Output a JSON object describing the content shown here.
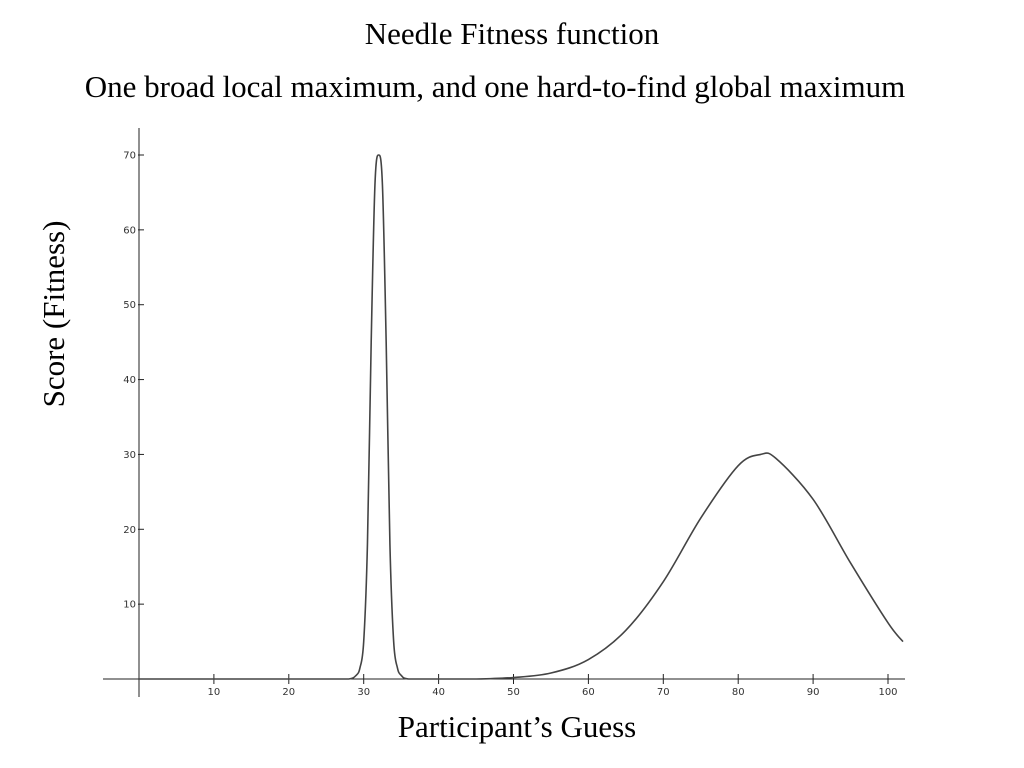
{
  "chart_data": {
    "type": "line",
    "title": "Needle Fitness function",
    "subtitle": "One broad local maximum, and one hard-to-find global maximum",
    "xlabel": "Participant’s Guess",
    "ylabel": "Score (Fitness)",
    "xlim": [
      -5,
      102
    ],
    "ylim": [
      0,
      70
    ],
    "xticks": [
      10,
      20,
      30,
      40,
      50,
      60,
      70,
      80,
      90,
      100
    ],
    "yticks": [
      10,
      20,
      30,
      40,
      50,
      60,
      70
    ],
    "grid": false,
    "series": [
      {
        "color": "#444444",
        "x": [
          0,
          25,
          28,
          29,
          29.5,
          30,
          30.5,
          31,
          31.5,
          32,
          32.5,
          33,
          33.5,
          34,
          34.5,
          35,
          36,
          40,
          45,
          50,
          55,
          60,
          65,
          70,
          75,
          80,
          83,
          85,
          90,
          95,
          100,
          102
        ],
        "y": [
          0,
          0,
          0,
          0.5,
          1.5,
          5,
          18,
          45,
          66,
          70,
          66,
          45,
          18,
          5,
          1.5,
          0.5,
          0,
          0,
          0,
          0.2,
          0.8,
          2.6,
          6.5,
          13,
          21.5,
          28.5,
          30,
          29.5,
          24,
          15.5,
          7.5,
          5
        ]
      }
    ]
  }
}
